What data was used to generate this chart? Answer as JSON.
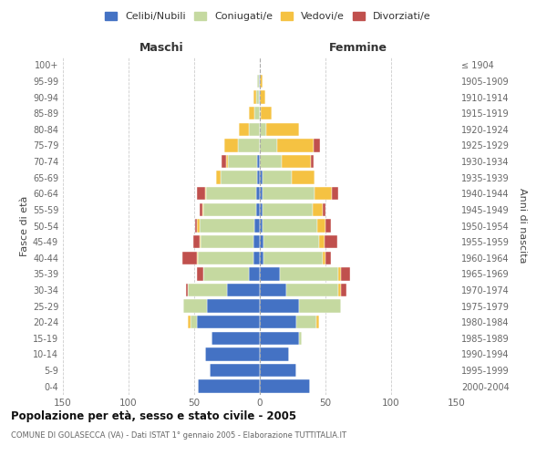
{
  "age_groups": [
    "0-4",
    "5-9",
    "10-14",
    "15-19",
    "20-24",
    "25-29",
    "30-34",
    "35-39",
    "40-44",
    "45-49",
    "50-54",
    "55-59",
    "60-64",
    "65-69",
    "70-74",
    "75-79",
    "80-84",
    "85-89",
    "90-94",
    "95-99",
    "100+"
  ],
  "birth_years": [
    "2000-2004",
    "1995-1999",
    "1990-1994",
    "1985-1989",
    "1980-1984",
    "1975-1979",
    "1970-1974",
    "1965-1969",
    "1960-1964",
    "1955-1959",
    "1950-1954",
    "1945-1949",
    "1940-1944",
    "1935-1939",
    "1930-1934",
    "1925-1929",
    "1920-1924",
    "1915-1919",
    "1910-1914",
    "1905-1909",
    "≤ 1904"
  ],
  "male": {
    "celibi": [
      47,
      38,
      42,
      37,
      48,
      40,
      25,
      8,
      5,
      5,
      4,
      3,
      3,
      2,
      2,
      0,
      0,
      0,
      1,
      1,
      0
    ],
    "coniugati": [
      0,
      0,
      0,
      0,
      5,
      18,
      30,
      35,
      42,
      40,
      42,
      40,
      38,
      28,
      22,
      17,
      8,
      4,
      2,
      1,
      0
    ],
    "vedovi": [
      0,
      0,
      0,
      0,
      2,
      0,
      0,
      0,
      1,
      1,
      2,
      1,
      1,
      3,
      2,
      10,
      8,
      4,
      2,
      0,
      0
    ],
    "divorziati": [
      0,
      0,
      0,
      0,
      0,
      0,
      1,
      5,
      11,
      5,
      1,
      2,
      6,
      0,
      3,
      0,
      0,
      0,
      0,
      0,
      0
    ]
  },
  "female": {
    "nubili": [
      38,
      28,
      22,
      30,
      28,
      30,
      20,
      15,
      3,
      3,
      2,
      2,
      2,
      2,
      0,
      0,
      0,
      0,
      0,
      0,
      0
    ],
    "coniugate": [
      0,
      0,
      0,
      2,
      15,
      32,
      40,
      45,
      45,
      42,
      42,
      38,
      40,
      22,
      17,
      13,
      5,
      1,
      0,
      0,
      0
    ],
    "vedove": [
      0,
      0,
      0,
      0,
      2,
      0,
      2,
      2,
      2,
      4,
      6,
      8,
      13,
      18,
      22,
      28,
      25,
      8,
      4,
      2,
      0
    ],
    "divorziate": [
      0,
      0,
      0,
      0,
      0,
      0,
      4,
      7,
      4,
      10,
      4,
      2,
      5,
      0,
      2,
      5,
      0,
      0,
      0,
      0,
      0
    ]
  },
  "colors": {
    "celibi": "#4472C4",
    "coniugati": "#C5D9A0",
    "vedovi": "#F5C242",
    "divorziati": "#C0504D"
  },
  "xlim": 150,
  "title": "Popolazione per età, sesso e stato civile - 2005",
  "subtitle": "COMUNE DI GOLASECCA (VA) - Dati ISTAT 1° gennaio 2005 - Elaborazione TUTTITALIA.IT",
  "legend_labels": [
    "Celibi/Nubili",
    "Coniugati/e",
    "Vedovi/e",
    "Divorziati/e"
  ],
  "ylabel_left": "Fasce di età",
  "ylabel_right": "Anni di nascita",
  "xlabel_left": "Maschi",
  "xlabel_right": "Femmine"
}
